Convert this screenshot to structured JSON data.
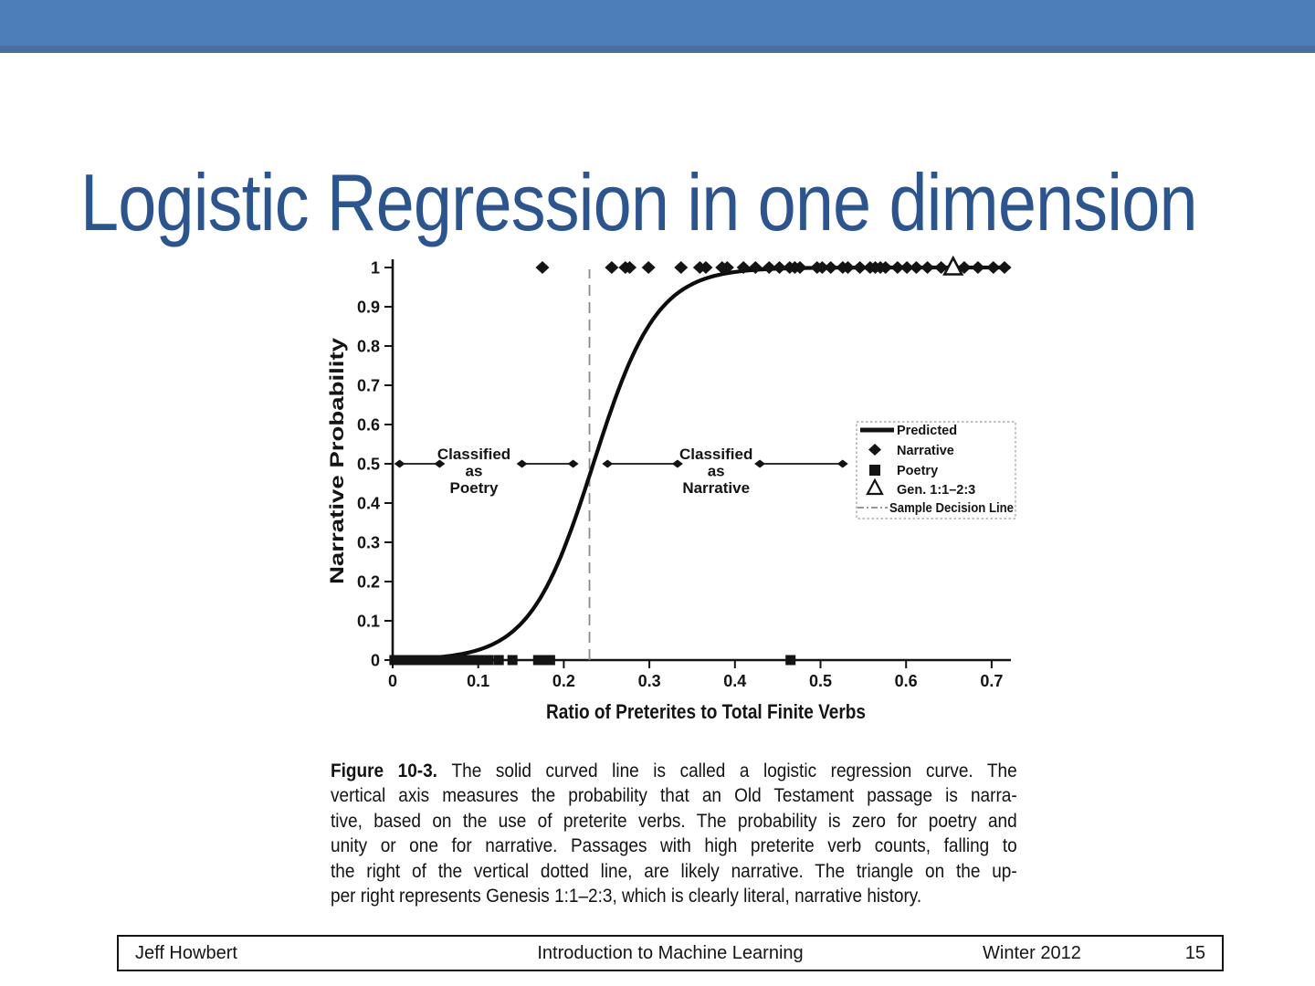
{
  "slide": {
    "title": "Logistic Regression in one dimension",
    "banner_color": "#4e7eb9",
    "title_color": "#2b5591",
    "ink_color": "#141414"
  },
  "chart_data": {
    "type": "scatter",
    "title": "",
    "xlabel": "Ratio of Preterites to Total Finite Verbs",
    "ylabel": "Narrative Probability",
    "xlim": [
      0,
      0.72
    ],
    "ylim": [
      0,
      1
    ],
    "grid": false,
    "x_tick_labels": [
      "0",
      "0.1",
      "0.2",
      "0.3",
      "0.4",
      "0.5",
      "0.6",
      "0.7"
    ],
    "y_tick_labels": [
      "0",
      "0.1",
      "0.2",
      "0.3",
      "0.4",
      "0.5",
      "0.6",
      "0.7",
      "0.8",
      "0.9",
      "1"
    ],
    "decision_line_x": 0.23,
    "logistic_curve": {
      "name": "Predicted",
      "x0": 0.2345,
      "k": 27
    },
    "series": [
      {
        "name": "Narrative",
        "marker": "diamond",
        "y": 1,
        "x": [
          0.175,
          0.256,
          0.272,
          0.277,
          0.299,
          0.337,
          0.359,
          0.366,
          0.385,
          0.391,
          0.41,
          0.424,
          0.44,
          0.452,
          0.464,
          0.47,
          0.476,
          0.496,
          0.502,
          0.512,
          0.526,
          0.532,
          0.546,
          0.558,
          0.564,
          0.57,
          0.576,
          0.59,
          0.601,
          0.612,
          0.625,
          0.641,
          0.668,
          0.684,
          0.702,
          0.715
        ]
      },
      {
        "name": "Poetry",
        "marker": "square",
        "y": 0,
        "x": [
          0.002,
          0.005,
          0.008,
          0.011,
          0.014,
          0.017,
          0.02,
          0.023,
          0.026,
          0.029,
          0.032,
          0.035,
          0.038,
          0.041,
          0.044,
          0.047,
          0.05,
          0.053,
          0.056,
          0.059,
          0.062,
          0.065,
          0.068,
          0.071,
          0.074,
          0.077,
          0.08,
          0.083,
          0.086,
          0.089,
          0.092,
          0.095,
          0.098,
          0.101,
          0.104,
          0.112,
          0.124,
          0.14,
          0.17,
          0.177,
          0.184,
          0.465
        ]
      },
      {
        "name": "Gen. 1:1–2:3",
        "marker": "triangle-open",
        "points": [
          {
            "x": 0.655,
            "y": 1
          }
        ]
      }
    ],
    "annotations": [
      {
        "lines": [
          "Classified",
          "as",
          "Poetry"
        ],
        "x": 0.095,
        "y": 0.5
      },
      {
        "lines": [
          "Classified",
          "as",
          "Narrative"
        ],
        "x": 0.378,
        "y": 0.5
      }
    ],
    "range_arrows": {
      "y": 0.5,
      "segments": [
        [
          0.006,
          0.057
        ],
        [
          0.149,
          0.213
        ],
        [
          0.249,
          0.335
        ],
        [
          0.427,
          0.528
        ]
      ]
    },
    "legend": {
      "position": "right-middle",
      "entries": [
        {
          "symbol": "line-solid",
          "label": "Predicted"
        },
        {
          "symbol": "diamond",
          "label": "Narrative"
        },
        {
          "symbol": "square",
          "label": "Poetry"
        },
        {
          "symbol": "triangle-open",
          "label": "Gen. 1:1–2:3"
        },
        {
          "symbol": "line-dashdot",
          "label": "Sample Decision Line"
        }
      ]
    }
  },
  "figure": {
    "caption": {
      "bold_prefix": "Figure 10-3.",
      "lines": [
        "The solid curved line is called a logistic regression curve. The",
        "vertical axis measures the probability that an Old Testament passage is narra-",
        "tive, based on the use of preterite verbs. The probability is zero for poetry and",
        "unity or one for narrative. Passages with high preterite verb counts, falling to",
        "the right of the vertical dotted line, are likely narrative. The triangle on the up-",
        "per right represents Genesis 1:1–2:3, which is clearly literal, narrative history."
      ]
    }
  },
  "footer": {
    "author": "Jeff Howbert",
    "course": "Introduction to Machine Learning",
    "term": "Winter 2012",
    "page": "15"
  }
}
